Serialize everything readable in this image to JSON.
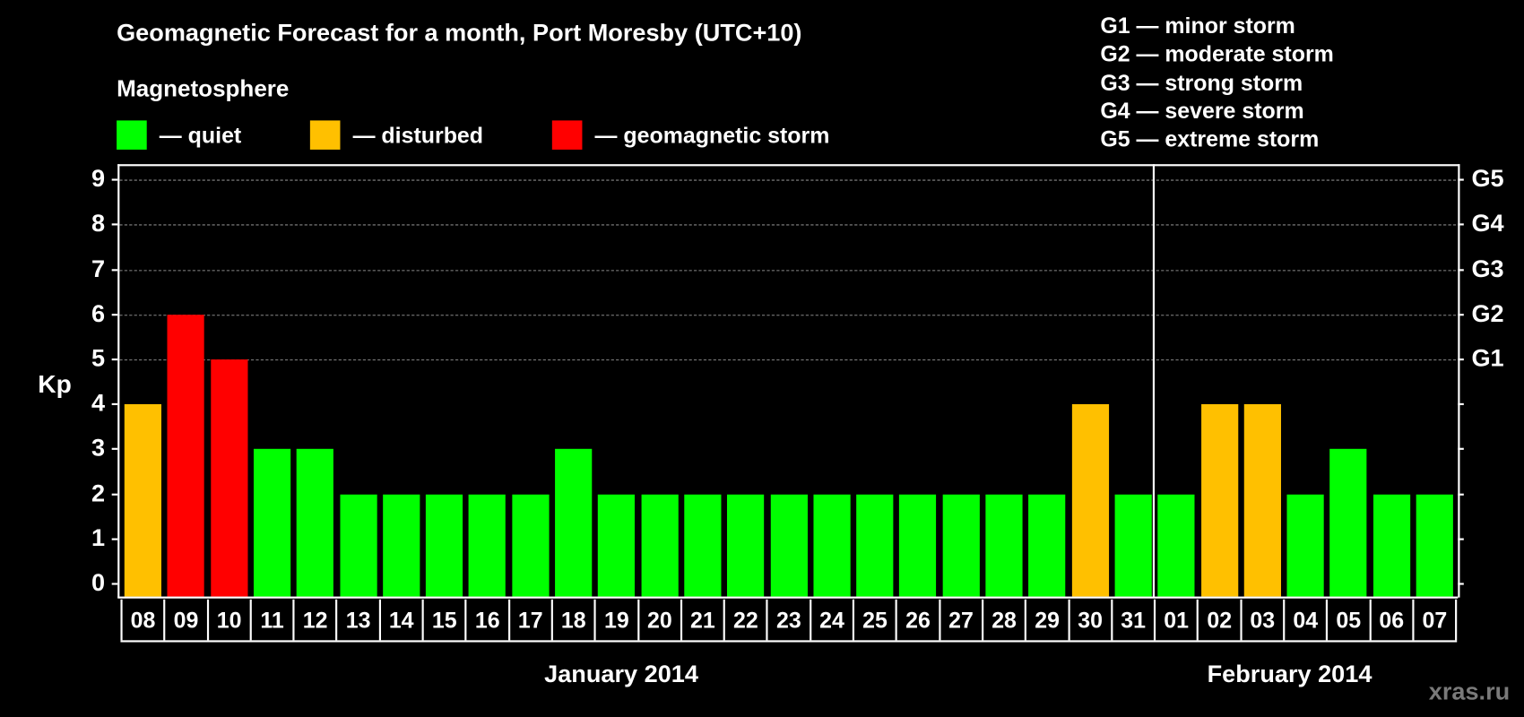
{
  "title": "Geomagnetic Forecast for a month, Port Moresby (UTC+10)",
  "subtitle": "Magnetosphere",
  "legend": [
    {
      "label": "— quiet",
      "color": "#00ff00",
      "key": "quiet"
    },
    {
      "label": "— disturbed",
      "color": "#ffc000",
      "key": "disturbed"
    },
    {
      "label": "— geomagnetic storm",
      "color": "#ff0000",
      "key": "storm"
    }
  ],
  "g_scale_legend": [
    "G1 — minor storm",
    "G2 — moderate storm",
    "G3 — strong storm",
    "G4 — severe storm",
    "G5 — extreme storm"
  ],
  "y_axis_label": "Kp",
  "y_ticks": [
    "0",
    "1",
    "2",
    "3",
    "4",
    "5",
    "6",
    "7",
    "8",
    "9"
  ],
  "right_ticks": [
    {
      "kp": 5,
      "label": "G1"
    },
    {
      "kp": 6,
      "label": "G2"
    },
    {
      "kp": 7,
      "label": "G3"
    },
    {
      "kp": 8,
      "label": "G4"
    },
    {
      "kp": 9,
      "label": "G5"
    }
  ],
  "months": [
    {
      "label": "January 2014"
    },
    {
      "label": "February 2014"
    }
  ],
  "watermark": "xras.ru",
  "colors": {
    "quiet": "#00ff00",
    "disturbed": "#ffc000",
    "storm": "#ff0000",
    "background": "#000000",
    "grid": "#888888"
  },
  "chart_data": {
    "type": "bar",
    "title": "Geomagnetic Forecast for a month, Port Moresby (UTC+10)",
    "xlabel": "January 2014 / February 2014",
    "ylabel": "Kp",
    "ylim": [
      0,
      9
    ],
    "grid": true,
    "secondary_axis": {
      "G1": 5,
      "G2": 6,
      "G3": 7,
      "G4": 8,
      "G5": 9
    },
    "categories": [
      "08",
      "09",
      "10",
      "11",
      "12",
      "13",
      "14",
      "15",
      "16",
      "17",
      "18",
      "19",
      "20",
      "21",
      "22",
      "23",
      "24",
      "25",
      "26",
      "27",
      "28",
      "29",
      "30",
      "31",
      "01",
      "02",
      "03",
      "04",
      "05",
      "06",
      "07"
    ],
    "values": [
      4,
      6,
      5,
      3,
      3,
      2,
      2,
      2,
      2,
      2,
      3,
      2,
      2,
      2,
      2,
      2,
      2,
      2,
      2,
      2,
      2,
      2,
      4,
      2,
      2,
      4,
      4,
      2,
      3,
      2,
      2
    ],
    "status": [
      "disturbed",
      "storm",
      "storm",
      "quiet",
      "quiet",
      "quiet",
      "quiet",
      "quiet",
      "quiet",
      "quiet",
      "quiet",
      "quiet",
      "quiet",
      "quiet",
      "quiet",
      "quiet",
      "quiet",
      "quiet",
      "quiet",
      "quiet",
      "quiet",
      "quiet",
      "disturbed",
      "quiet",
      "quiet",
      "disturbed",
      "disturbed",
      "quiet",
      "quiet",
      "quiet",
      "quiet"
    ],
    "month_split_after": "31",
    "legend": [
      "quiet",
      "disturbed",
      "geomagnetic storm"
    ]
  }
}
